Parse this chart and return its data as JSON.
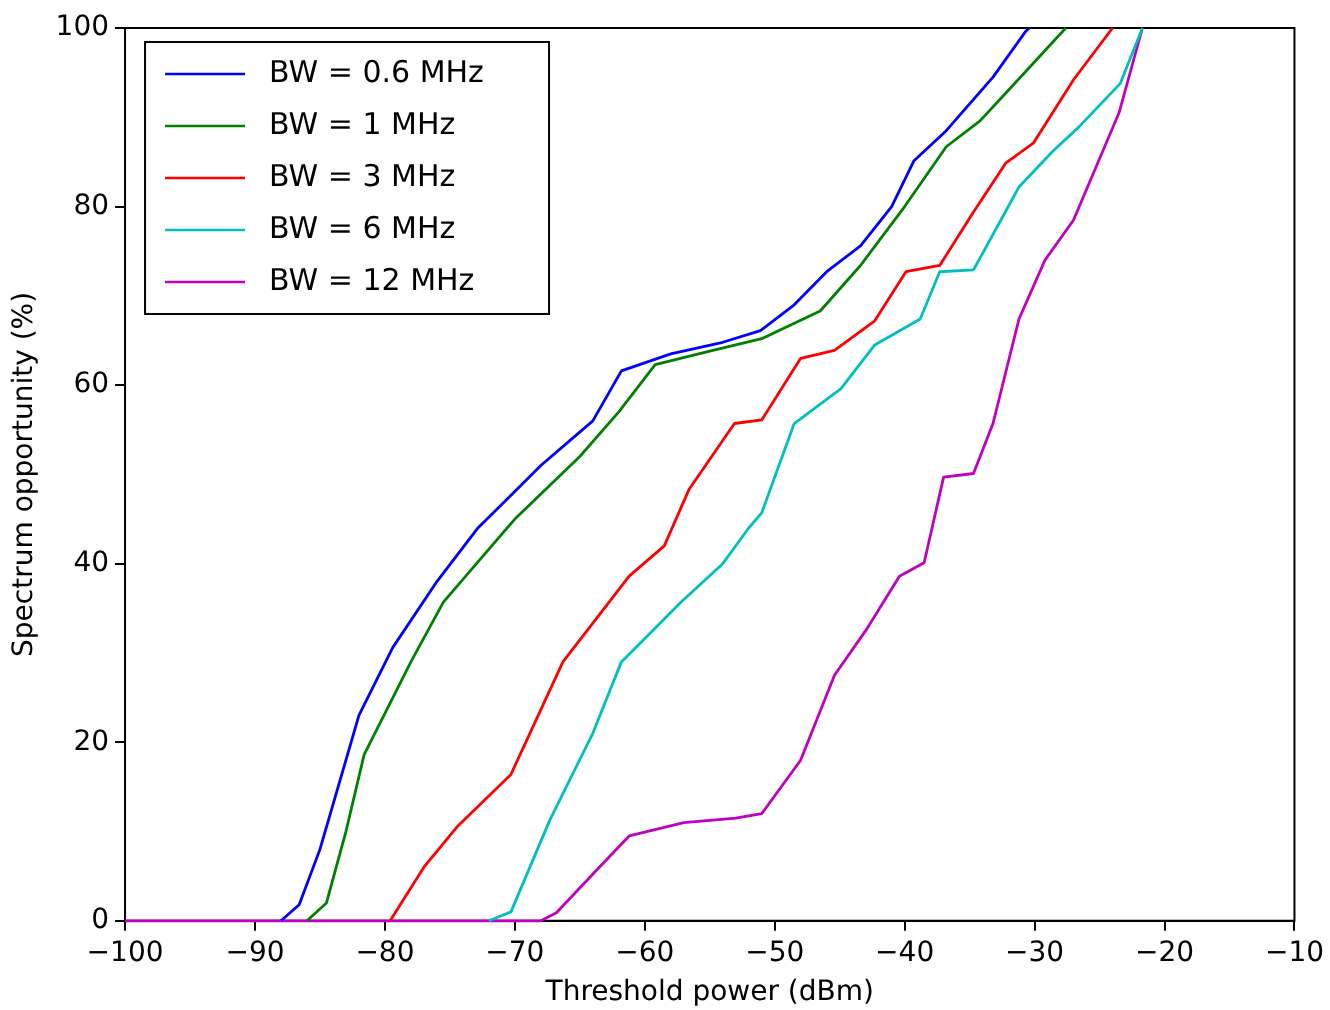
{
  "chart_data": {
    "type": "line",
    "xlabel": "Threshold power (dBm)",
    "ylabel": "Spectrum opportunity (%)",
    "xlim": [
      -100,
      -10
    ],
    "ylim": [
      0,
      100
    ],
    "xticks": [
      {
        "value": -100,
        "label": "−100"
      },
      {
        "value": -90,
        "label": "−90"
      },
      {
        "value": -80,
        "label": "−80"
      },
      {
        "value": -70,
        "label": "−70"
      },
      {
        "value": -60,
        "label": "−60"
      },
      {
        "value": -50,
        "label": "−50"
      },
      {
        "value": -40,
        "label": "−40"
      },
      {
        "value": -30,
        "label": "−30"
      },
      {
        "value": -20,
        "label": "−20"
      },
      {
        "value": -10,
        "label": "−10"
      }
    ],
    "yticks": [
      0,
      20,
      40,
      60,
      80,
      100
    ],
    "grid": false,
    "legend": "top left",
    "marker": "none",
    "line_style": "solid",
    "series": [
      {
        "name": "BW = 0.6 MHz",
        "color": "#0000ff",
        "x": [
          -88,
          -86.6,
          -85,
          -83.6,
          -82,
          -79.4,
          -76,
          -72.9,
          -68,
          -64,
          -61.8,
          -58,
          -54,
          -51.1,
          -48.5,
          -46,
          -43.4,
          -41,
          -39.3,
          -36.8,
          -33.2,
          -30.7,
          -30.4
        ],
        "values": [
          0,
          1.8,
          8,
          15,
          23,
          30.6,
          38,
          43.9,
          51,
          56,
          61.6,
          63.5,
          64.8,
          66.1,
          69,
          72.7,
          75.6,
          80,
          85.1,
          88.5,
          94.5,
          99.6,
          100
        ]
      },
      {
        "name": "BW = 1 MHz",
        "color": "#008000",
        "x": [
          -86,
          -84.5,
          -83,
          -81.6,
          -78,
          -75.5,
          -70,
          -65,
          -62,
          -59.2,
          -55,
          -51,
          -46.5,
          -43.4,
          -40,
          -36.8,
          -34.2,
          -30.7,
          -27.6
        ],
        "values": [
          0,
          2,
          10,
          18.6,
          29,
          35.7,
          45,
          52,
          57,
          62.3,
          63.8,
          65.2,
          68.3,
          73.4,
          80,
          86.7,
          89.6,
          95.1,
          100
        ]
      },
      {
        "name": "BW = 3 MHz",
        "color": "#ff0000",
        "x": [
          -79.6,
          -77,
          -74.4,
          -70.3,
          -66.3,
          -61.2,
          -58.5,
          -56.6,
          -53.1,
          -51,
          -48,
          -45.4,
          -42.3,
          -39.9,
          -37.3,
          -34.7,
          -32.2,
          -30.1,
          -27,
          -24
        ],
        "values": [
          0,
          6,
          10.6,
          16.4,
          29,
          38.6,
          42,
          48.3,
          55.7,
          56.1,
          63,
          63.9,
          67.2,
          72.7,
          73.4,
          79.4,
          84.9,
          87.1,
          94.2,
          100
        ]
      },
      {
        "name": "BW = 6 MHz",
        "color": "#00bfbf",
        "x": [
          -72,
          -70.3,
          -67.3,
          -64,
          -61.8,
          -57.2,
          -54,
          -52,
          -51,
          -48.5,
          -44.9,
          -42.3,
          -38.8,
          -37.3,
          -34.7,
          -31.2,
          -28.6,
          -26.6,
          -23.4,
          -21.7
        ],
        "values": [
          0,
          1,
          11.3,
          21,
          29,
          35.7,
          40,
          44,
          45.7,
          55.7,
          59.6,
          64.5,
          67.4,
          72.7,
          72.9,
          82.2,
          86.2,
          88.9,
          93.8,
          100
        ]
      },
      {
        "name": "BW = 12 MHz",
        "color": "#bf00bf",
        "x": [
          -100,
          -68,
          -66.8,
          -63.5,
          -61.2,
          -57,
          -53,
          -51,
          -48,
          -45.4,
          -43,
          -40.4,
          -38.5,
          -37,
          -34.7,
          -33.2,
          -31.2,
          -29.2,
          -27,
          -23.5,
          -21.7
        ],
        "values": [
          0,
          0,
          0.9,
          6,
          9.5,
          11,
          11.5,
          12,
          18,
          27.5,
          32.5,
          38.6,
          40.1,
          49.7,
          50.1,
          55.7,
          67.4,
          74,
          78.5,
          90.5,
          100
        ]
      }
    ]
  }
}
